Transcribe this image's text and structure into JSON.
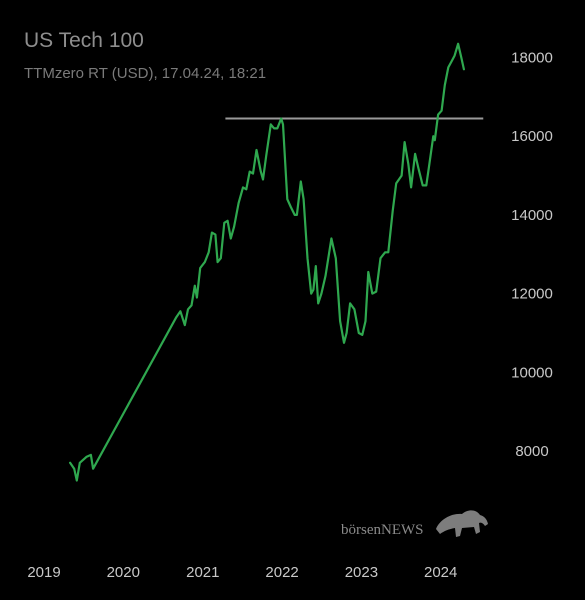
{
  "chart_data": {
    "type": "line",
    "title": "US Tech 100",
    "subtitle": "TTMzero RT (USD), 17.04.24, 18:21",
    "x_ticks": [
      "2019",
      "2020",
      "2021",
      "2022",
      "2023",
      "2024"
    ],
    "y_ticks": [
      "8000",
      "10000",
      "12000",
      "14000",
      "16000",
      "18000"
    ],
    "ylim": [
      6500,
      18700
    ],
    "xlim": [
      "2019-01-01",
      "2024-08-15"
    ],
    "grid": false,
    "series_color": "#2fa84f",
    "resistance_line": {
      "value": 16450,
      "from": "2021-04-15",
      "to": "2024-07-15",
      "color": "#9a9a9a"
    },
    "series": [
      {
        "points": [
          [
            "2019-05-01",
            7700
          ],
          [
            "2019-05-20",
            7550
          ],
          [
            "2019-06-01",
            7250
          ],
          [
            "2019-06-15",
            7700
          ],
          [
            "2019-07-15",
            7850
          ],
          [
            "2019-08-05",
            7900
          ],
          [
            "2019-08-15",
            7550
          ],
          [
            "2020-09-01",
            11400
          ],
          [
            "2020-09-20",
            11550
          ],
          [
            "2020-10-10",
            11200
          ],
          [
            "2020-10-25",
            11600
          ],
          [
            "2020-11-10",
            11700
          ],
          [
            "2020-11-25",
            12200
          ],
          [
            "2020-12-05",
            11900
          ],
          [
            "2020-12-20",
            12650
          ],
          [
            "2021-01-10",
            12800
          ],
          [
            "2021-01-28",
            13050
          ],
          [
            "2021-02-12",
            13550
          ],
          [
            "2021-02-28",
            13500
          ],
          [
            "2021-03-10",
            12800
          ],
          [
            "2021-03-25",
            12900
          ],
          [
            "2021-04-10",
            13800
          ],
          [
            "2021-04-25",
            13850
          ],
          [
            "2021-05-10",
            13400
          ],
          [
            "2021-05-25",
            13700
          ],
          [
            "2021-06-15",
            14300
          ],
          [
            "2021-07-05",
            14700
          ],
          [
            "2021-07-20",
            14650
          ],
          [
            "2021-08-05",
            15100
          ],
          [
            "2021-08-20",
            15050
          ],
          [
            "2021-09-05",
            15650
          ],
          [
            "2021-09-25",
            15100
          ],
          [
            "2021-10-05",
            14900
          ],
          [
            "2021-10-20",
            15500
          ],
          [
            "2021-11-10",
            16300
          ],
          [
            "2021-11-25",
            16200
          ],
          [
            "2021-12-10",
            16200
          ],
          [
            "2021-12-28",
            16450
          ],
          [
            "2022-01-05",
            16300
          ],
          [
            "2022-01-25",
            14400
          ],
          [
            "2022-02-10",
            14200
          ],
          [
            "2022-02-28",
            14000
          ],
          [
            "2022-03-10",
            14000
          ],
          [
            "2022-03-28",
            14850
          ],
          [
            "2022-04-10",
            14400
          ],
          [
            "2022-04-28",
            12900
          ],
          [
            "2022-05-15",
            12000
          ],
          [
            "2022-05-25",
            12100
          ],
          [
            "2022-06-05",
            12700
          ],
          [
            "2022-06-16",
            11750
          ],
          [
            "2022-07-01",
            12000
          ],
          [
            "2022-07-20",
            12450
          ],
          [
            "2022-08-16",
            13400
          ],
          [
            "2022-09-05",
            12900
          ],
          [
            "2022-09-25",
            11300
          ],
          [
            "2022-10-13",
            10750
          ],
          [
            "2022-10-25",
            11000
          ],
          [
            "2022-11-10",
            11750
          ],
          [
            "2022-11-30",
            11600
          ],
          [
            "2022-12-20",
            11000
          ],
          [
            "2023-01-05",
            10950
          ],
          [
            "2023-01-20",
            11300
          ],
          [
            "2023-02-02",
            12550
          ],
          [
            "2023-02-20",
            12000
          ],
          [
            "2023-03-10",
            12050
          ],
          [
            "2023-03-30",
            12900
          ],
          [
            "2023-04-20",
            13050
          ],
          [
            "2023-05-05",
            13050
          ],
          [
            "2023-05-25",
            14100
          ],
          [
            "2023-06-10",
            14800
          ],
          [
            "2023-07-05",
            15000
          ],
          [
            "2023-07-19",
            15850
          ],
          [
            "2023-08-05",
            15300
          ],
          [
            "2023-08-18",
            14700
          ],
          [
            "2023-09-05",
            15550
          ],
          [
            "2023-09-20",
            15200
          ],
          [
            "2023-10-10",
            14750
          ],
          [
            "2023-10-27",
            14750
          ],
          [
            "2023-11-10",
            15300
          ],
          [
            "2023-11-28",
            16000
          ],
          [
            "2023-12-05",
            15900
          ],
          [
            "2023-12-20",
            16550
          ],
          [
            "2024-01-05",
            16650
          ],
          [
            "2024-01-20",
            17300
          ],
          [
            "2024-02-05",
            17750
          ],
          [
            "2024-02-20",
            17900
          ],
          [
            "2024-03-05",
            18050
          ],
          [
            "2024-03-21",
            18350
          ],
          [
            "2024-04-05",
            18000
          ],
          [
            "2024-04-17",
            17700
          ]
        ]
      }
    ]
  },
  "branding": {
    "logo_text": "börsenNEWS",
    "logo_icon": "bull-icon"
  }
}
